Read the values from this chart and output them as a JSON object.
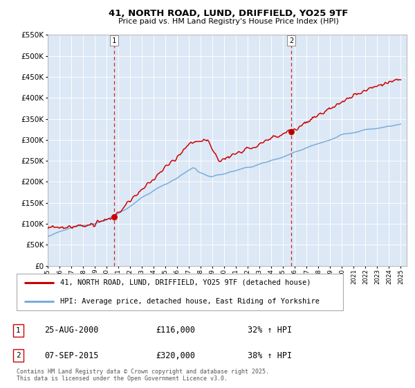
{
  "title": "41, NORTH ROAD, LUND, DRIFFIELD, YO25 9TF",
  "subtitle": "Price paid vs. HM Land Registry's House Price Index (HPI)",
  "sale1_date": "25-AUG-2000",
  "sale1_price": 116000,
  "sale1_year": 2000.646,
  "sale1_label": "1",
  "sale1_hpi_pct": "32% ↑ HPI",
  "sale2_date": "07-SEP-2015",
  "sale2_price": 320000,
  "sale2_year": 2015.688,
  "sale2_label": "2",
  "sale2_hpi_pct": "38% ↑ HPI",
  "legend_property": "41, NORTH ROAD, LUND, DRIFFIELD, YO25 9TF (detached house)",
  "legend_hpi": "HPI: Average price, detached house, East Riding of Yorkshire",
  "footnote": "Contains HM Land Registry data © Crown copyright and database right 2025.\nThis data is licensed under the Open Government Licence v3.0.",
  "ylim": [
    0,
    550000
  ],
  "yticks": [
    0,
    50000,
    100000,
    150000,
    200000,
    250000,
    300000,
    350000,
    400000,
    450000,
    500000,
    550000
  ],
  "xmin": 1995,
  "xmax": 2025.5,
  "property_color": "#cc0000",
  "hpi_color": "#7aaddb",
  "vline_color": "#cc0000",
  "plot_bg": "#dce8f5"
}
